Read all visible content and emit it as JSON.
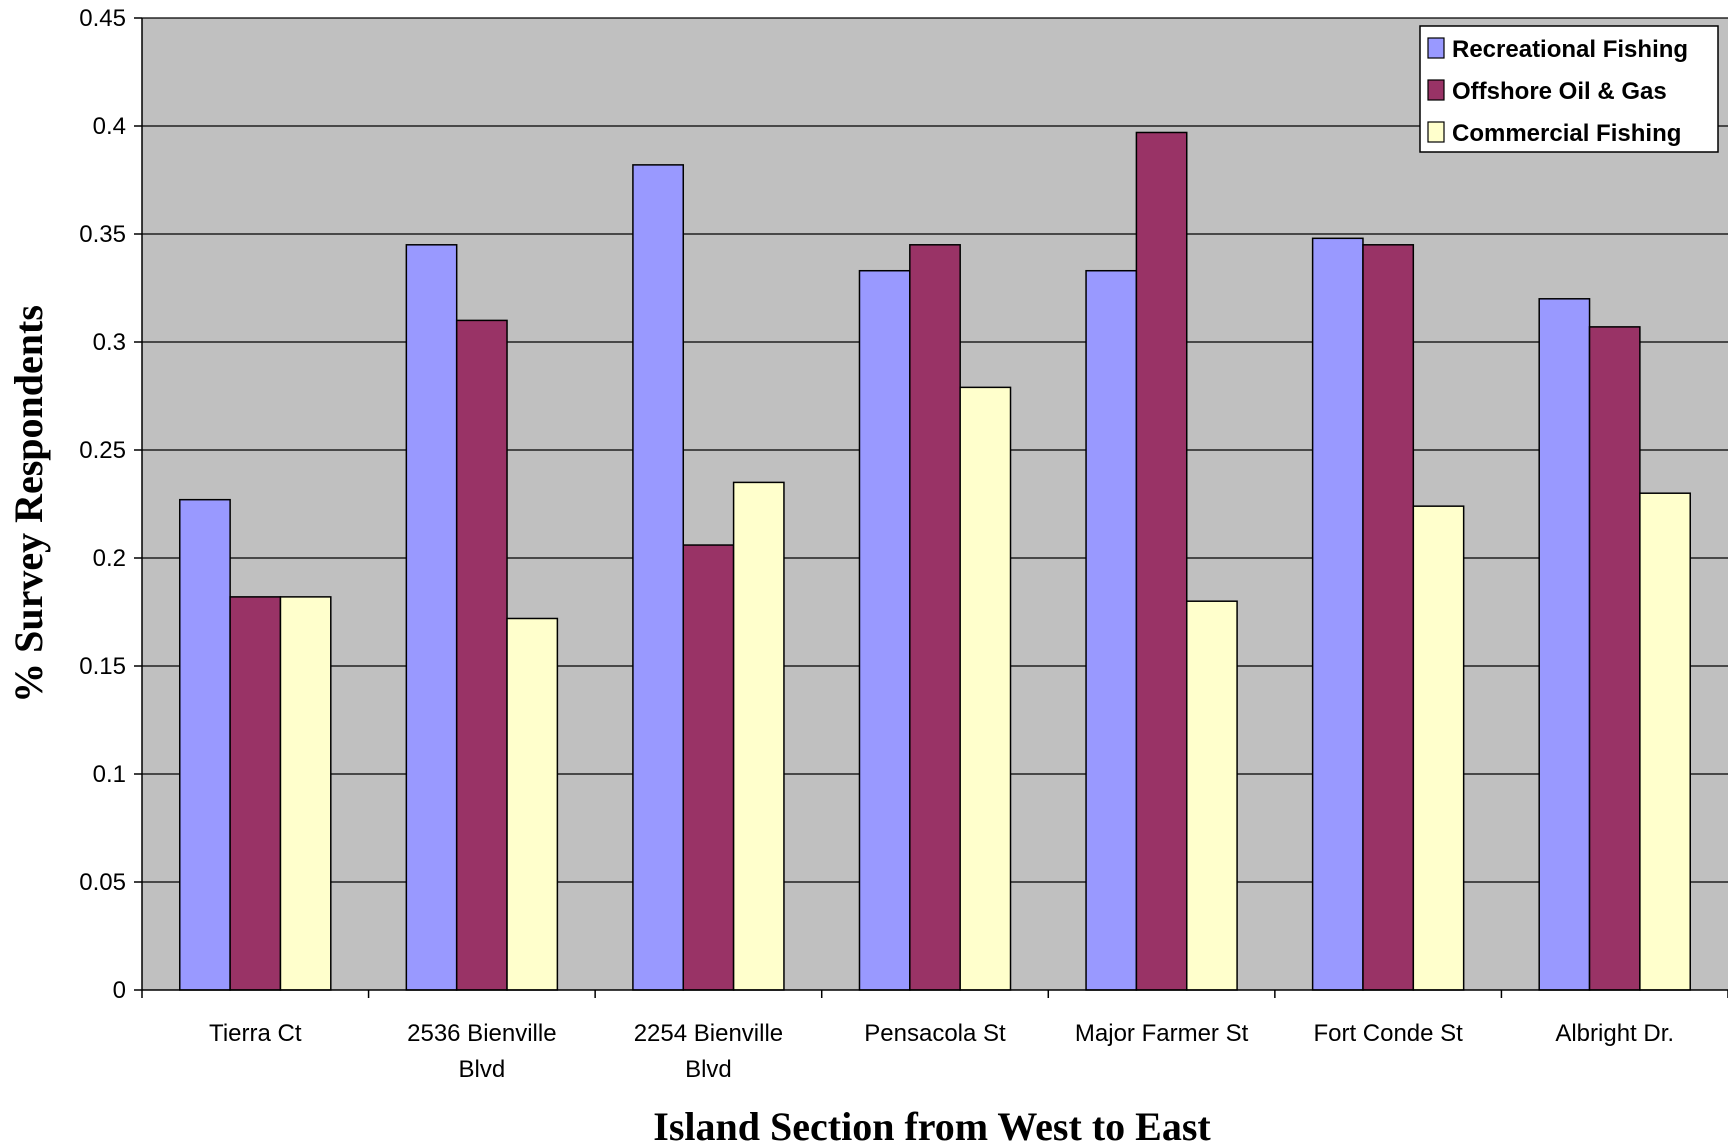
{
  "chart_data": {
    "type": "bar",
    "xlabel": "Island Section from West to East",
    "ylabel": "% Survey Respondents",
    "ylim": [
      0,
      0.45
    ],
    "yticks": [
      "0",
      "0.05",
      "0.1",
      "0.15",
      "0.2",
      "0.25",
      "0.3",
      "0.35",
      "0.4",
      "0.45"
    ],
    "categories": [
      [
        "Tierra Ct"
      ],
      [
        "2536 Bienville",
        "Blvd"
      ],
      [
        "2254 Bienville",
        "Blvd"
      ],
      [
        "Pensacola St"
      ],
      [
        "Major Farmer St"
      ],
      [
        "Fort Conde St"
      ],
      [
        "Albright Dr."
      ]
    ],
    "series": [
      {
        "name": "Recreational Fishing",
        "color": "#9999ff",
        "values": [
          0.227,
          0.345,
          0.382,
          0.333,
          0.333,
          0.348,
          0.32
        ]
      },
      {
        "name": "Offshore Oil & Gas",
        "color": "#993366",
        "values": [
          0.182,
          0.31,
          0.206,
          0.345,
          0.397,
          0.345,
          0.307
        ]
      },
      {
        "name": "Commercial Fishing",
        "color": "#ffffcc",
        "values": [
          0.182,
          0.172,
          0.235,
          0.279,
          0.18,
          0.224,
          0.23
        ]
      }
    ],
    "grid": true,
    "plot_background": "#c0c0c0",
    "legend_position": "top-right"
  }
}
